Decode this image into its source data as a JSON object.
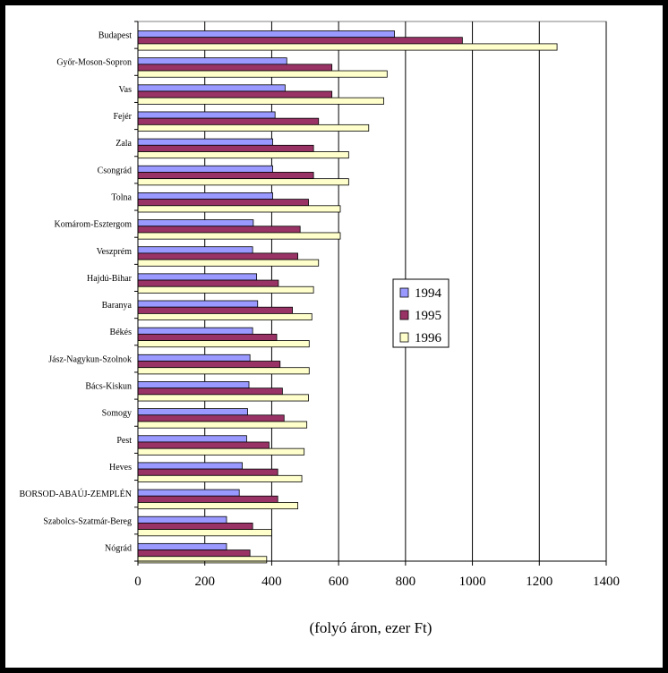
{
  "chart_data": {
    "type": "bar",
    "orientation": "horizontal",
    "title": "",
    "xlabel": "(folyó áron, ezer Ft)",
    "ylabel": "",
    "xlim": [
      0,
      1400
    ],
    "x_ticks": [
      0,
      200,
      400,
      600,
      800,
      1000,
      1200,
      1400
    ],
    "grid": "vertical",
    "legend_position": "center-right",
    "categories": [
      "Budapest",
      "Győr-Moson-Sopron",
      "Vas",
      "Fejér",
      "Zala",
      "Csongrád",
      "Tolna",
      "Komárom-Esztergom",
      "Veszprém",
      "Hajdú-Bihar",
      "Baranya",
      "Békés",
      "Jász-Nagykun-Szolnok",
      "Bács-Kiskun",
      "Somogy",
      "Pest",
      "Heves",
      "BORSOD-ABAÚJ-ZEMPLÉN",
      "Szabolcs-Szatmár-Bereg",
      "Nógrád"
    ],
    "series": [
      {
        "name": "1994",
        "color": "#9999ff",
        "values": [
          767,
          445,
          440,
          410,
          403,
          403,
          403,
          345,
          343,
          355,
          358,
          343,
          335,
          332,
          328,
          325,
          312,
          303,
          265,
          265
        ]
      },
      {
        "name": "1995",
        "color": "#993366",
        "values": [
          970,
          580,
          580,
          540,
          525,
          525,
          510,
          485,
          478,
          420,
          462,
          415,
          425,
          432,
          437,
          392,
          418,
          418,
          343,
          335
        ]
      },
      {
        "name": "1996",
        "color": "#ffffcc",
        "values": [
          1253,
          745,
          735,
          690,
          630,
          630,
          605,
          605,
          540,
          525,
          520,
          512,
          512,
          510,
          505,
          497,
          490,
          478,
          400,
          385
        ]
      }
    ]
  }
}
